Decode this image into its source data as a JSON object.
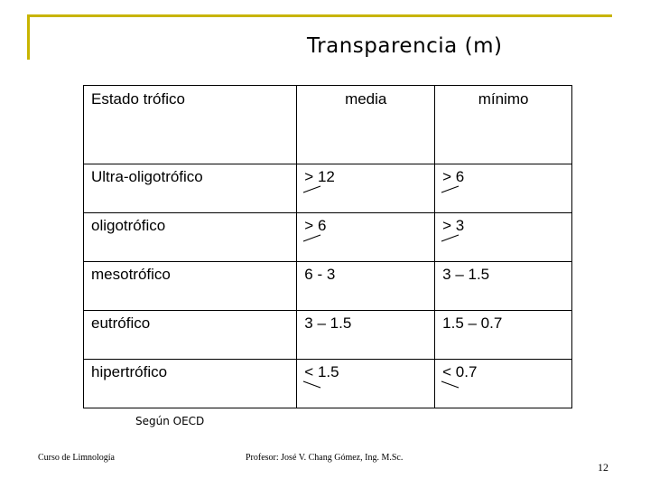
{
  "slide": {
    "title": "Transparencia (m)",
    "source": "Según OECD",
    "footer_left": "Curso de Limnología",
    "footer_center": "Profesor: José V. Chang Gómez, Ing. M.Sc.",
    "page_number": "12"
  },
  "table": {
    "headers": [
      "Estado trófico",
      "media",
      "mínimo"
    ],
    "rows": [
      {
        "state": "Ultra-oligotrófico",
        "media": "> 12",
        "minimo": ">  6"
      },
      {
        "state": "oligotrófico",
        "media": "> 6",
        "minimo": "> 3"
      },
      {
        "state": "mesotrófico",
        "media": "6 - 3",
        "minimo": "3 – 1.5"
      },
      {
        "state": "eutrófico",
        "media": "3 – 1.5",
        "minimo": "1.5 – 0.7"
      },
      {
        "state": "hipertrófico",
        "media": "< 1.5",
        "minimo": "< 0.7"
      }
    ]
  }
}
